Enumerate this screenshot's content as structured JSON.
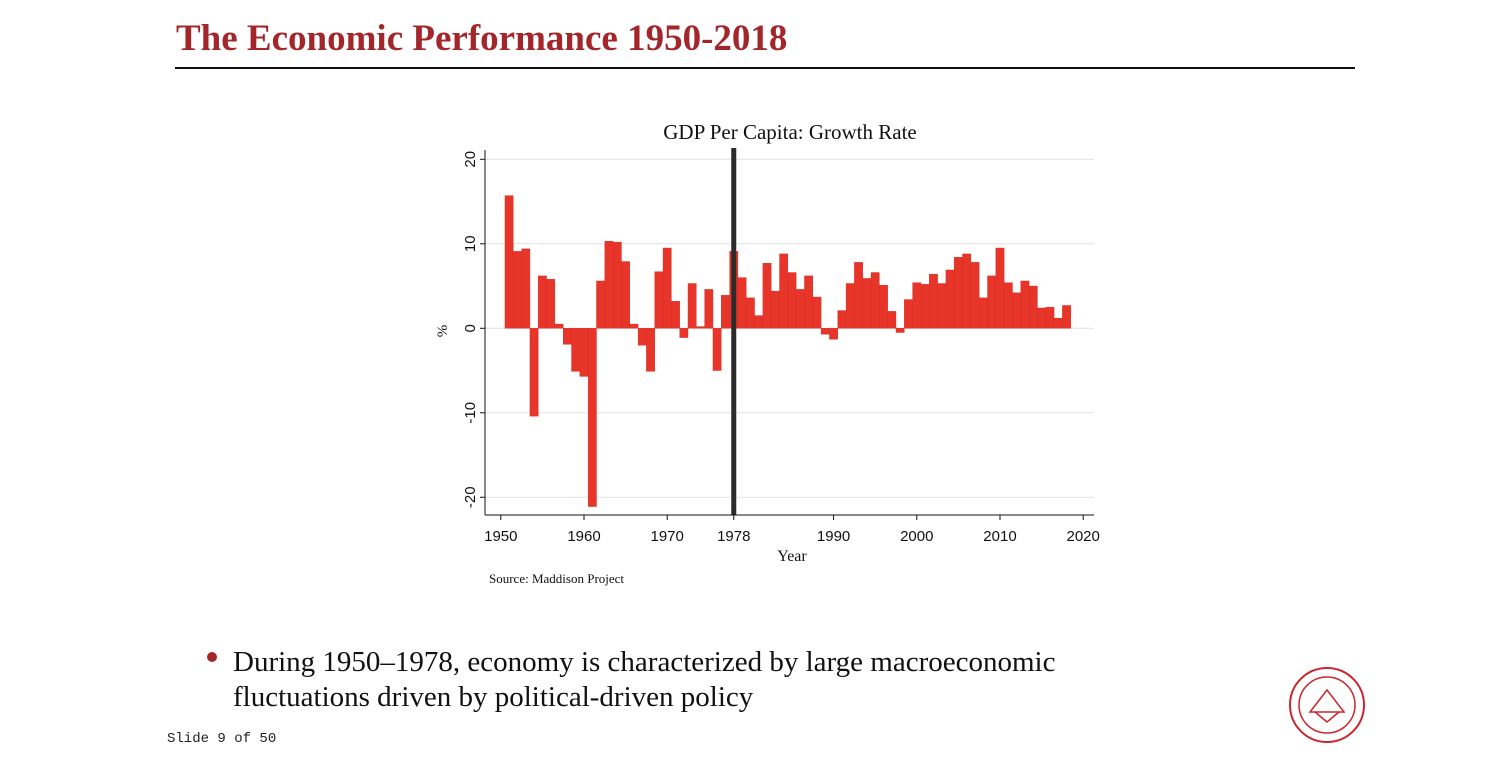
{
  "slide": {
    "title": "The Economic Performance 1950-2018",
    "bullet_lines": [
      "During 1950–1978, economy is characterized by large macroeconomic",
      "fluctuations driven by political-driven policy"
    ],
    "footer": "Slide 9 of 50"
  },
  "chart_data": {
    "type": "bar",
    "title": "GDP Per Capita: Growth Rate",
    "xlabel": "Year",
    "ylabel": "%",
    "note": "Source: Maddison Project",
    "color": "#e8352a",
    "grid": true,
    "vline": 1978,
    "vline_color": "#2b2b2b",
    "x": [
      1951,
      1952,
      1953,
      1954,
      1955,
      1956,
      1957,
      1958,
      1959,
      1960,
      1961,
      1962,
      1963,
      1964,
      1965,
      1966,
      1967,
      1968,
      1969,
      1970,
      1971,
      1972,
      1973,
      1974,
      1975,
      1976,
      1977,
      1978,
      1979,
      1980,
      1981,
      1982,
      1983,
      1984,
      1985,
      1986,
      1987,
      1988,
      1989,
      1990,
      1991,
      1992,
      1993,
      1994,
      1995,
      1996,
      1997,
      1998,
      1999,
      2000,
      2001,
      2002,
      2003,
      2004,
      2005,
      2006,
      2007,
      2008,
      2009,
      2010,
      2011,
      2012,
      2013,
      2014,
      2015,
      2016,
      2017,
      2018
    ],
    "values": [
      15.7,
      9.1,
      9.4,
      -10.4,
      6.2,
      5.8,
      0.5,
      -1.9,
      -5.1,
      -5.7,
      -21.1,
      5.6,
      10.3,
      10.2,
      7.9,
      0.5,
      -2.0,
      -5.1,
      6.7,
      9.5,
      3.2,
      -1.1,
      5.3,
      0.2,
      4.6,
      -5.0,
      3.9,
      9.1,
      6.0,
      3.6,
      1.5,
      7.7,
      4.4,
      8.8,
      6.6,
      4.6,
      6.2,
      3.7,
      -0.7,
      -1.3,
      2.1,
      5.3,
      7.8,
      5.9,
      6.6,
      5.1,
      2.0,
      -0.5,
      3.4,
      5.4,
      5.2,
      6.4,
      5.3,
      6.9,
      8.4,
      8.8,
      7.8,
      3.6,
      6.2,
      9.5,
      5.4,
      4.2,
      5.6,
      5.0,
      2.4,
      2.5,
      1.2,
      2.7
    ],
    "xlim": [
      1948.1,
      2021.3
    ],
    "xticks": [
      1950,
      1960,
      1970,
      1978,
      1990,
      2000,
      2010,
      2020
    ],
    "ylim": [
      -22.1,
      21.1
    ],
    "yticks": [
      -20,
      -10,
      0,
      10,
      20
    ]
  }
}
